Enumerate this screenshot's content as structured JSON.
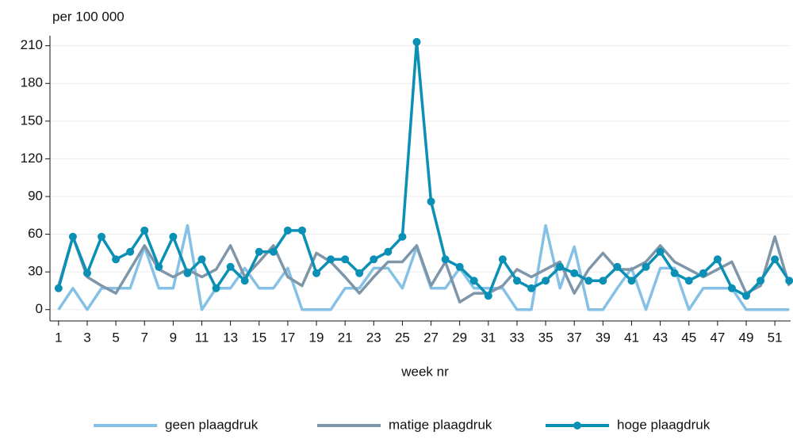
{
  "chart_data": {
    "type": "line",
    "y_label": "per 100 000",
    "x_label": "week nr",
    "x": [
      1,
      2,
      3,
      4,
      5,
      6,
      7,
      8,
      9,
      10,
      11,
      12,
      13,
      14,
      15,
      16,
      17,
      18,
      19,
      20,
      21,
      22,
      23,
      24,
      25,
      26,
      27,
      28,
      29,
      30,
      31,
      32,
      33,
      34,
      35,
      36,
      37,
      38,
      39,
      40,
      41,
      42,
      43,
      44,
      45,
      46,
      47,
      48,
      49,
      50,
      51,
      52
    ],
    "xlim": [
      0.4,
      52.1
    ],
    "xticks": [
      1,
      3,
      5,
      7,
      9,
      11,
      13,
      15,
      17,
      19,
      21,
      23,
      25,
      27,
      29,
      31,
      33,
      35,
      37,
      39,
      41,
      43,
      45,
      47,
      49,
      51
    ],
    "ylim": [
      -9,
      218
    ],
    "yticks": [
      0,
      30,
      60,
      90,
      120,
      150,
      180,
      210
    ],
    "grid": true,
    "legend": "bottom",
    "series": [
      {
        "name": "geen plaagdruk",
        "color": "#85c1e6",
        "markers": false,
        "values": [
          0,
          17,
          0,
          17,
          17,
          17,
          50,
          17,
          17,
          67,
          0,
          17,
          17,
          33,
          17,
          17,
          33,
          0,
          0,
          0,
          17,
          17,
          33,
          33,
          17,
          50,
          17,
          17,
          33,
          17,
          17,
          17,
          0,
          0,
          67,
          17,
          50,
          0,
          0,
          17,
          33,
          0,
          33,
          33,
          0,
          17,
          17,
          17,
          0,
          0,
          0,
          0
        ]
      },
      {
        "name": "matige plaagdruk",
        "color": "#7f95a8",
        "markers": false,
        "values": [
          19,
          58,
          26,
          19,
          13,
          32,
          51,
          32,
          26,
          32,
          26,
          32,
          51,
          26,
          38,
          51,
          26,
          19,
          45,
          38,
          26,
          13,
          26,
          38,
          38,
          51,
          19,
          38,
          6,
          13,
          13,
          19,
          32,
          26,
          32,
          38,
          13,
          32,
          45,
          32,
          32,
          38,
          51,
          38,
          32,
          26,
          32,
          38,
          13,
          19,
          58,
          19
        ]
      },
      {
        "name": "hoge plaagdruk",
        "color": "#0a8fb5",
        "markers": true,
        "values": [
          17,
          58,
          29,
          58,
          40,
          46,
          63,
          34,
          58,
          29,
          40,
          17,
          34,
          23,
          46,
          46,
          63,
          63,
          29,
          40,
          40,
          29,
          40,
          46,
          58,
          213,
          86,
          40,
          34,
          23,
          11,
          40,
          23,
          17,
          23,
          34,
          29,
          23,
          23,
          34,
          23,
          34,
          46,
          29,
          23,
          29,
          40,
          17,
          11,
          23,
          40,
          23
        ]
      }
    ]
  }
}
